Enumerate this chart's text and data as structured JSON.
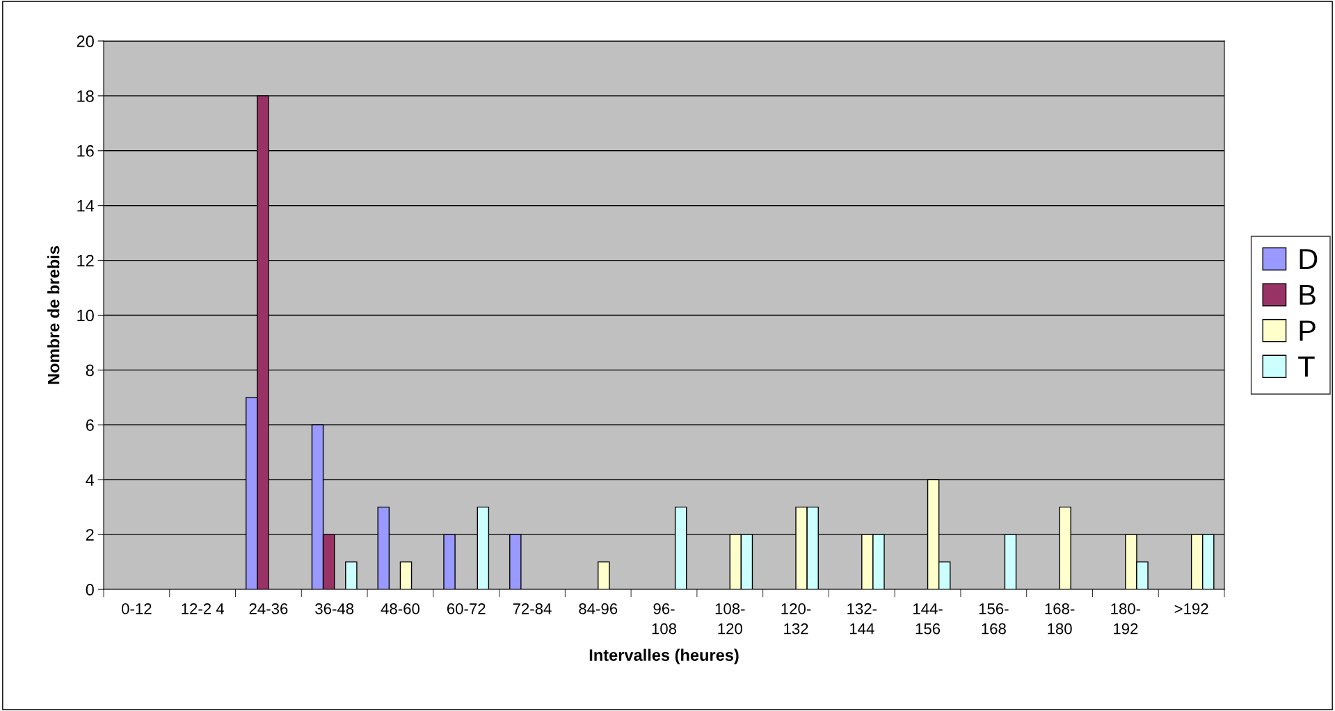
{
  "chart_data": {
    "type": "bar",
    "xlabel": "Intervalles (heures)",
    "ylabel": "Nombre de brebis",
    "categories": [
      "0-12",
      "12-2 4",
      "24-36",
      "36-48",
      "48-60",
      "60-72",
      "72-84",
      "84-96",
      "96-\n108",
      "108-\n120",
      "120-\n132",
      "132-\n144",
      "144-\n156",
      "156-\n168",
      "168-\n180",
      "180-\n192",
      ">192"
    ],
    "series": [
      {
        "name": "D",
        "color": "#9999ff",
        "values": [
          null,
          null,
          7,
          6,
          3,
          2,
          2,
          null,
          null,
          null,
          null,
          null,
          null,
          null,
          null,
          null,
          null
        ]
      },
      {
        "name": "B",
        "color": "#993366",
        "values": [
          null,
          null,
          18,
          2,
          null,
          null,
          null,
          null,
          null,
          null,
          null,
          null,
          null,
          null,
          null,
          null,
          null
        ]
      },
      {
        "name": "P",
        "color": "#ffffcc",
        "values": [
          null,
          null,
          null,
          null,
          1,
          null,
          null,
          1,
          null,
          2,
          3,
          2,
          4,
          null,
          3,
          2,
          2
        ]
      },
      {
        "name": "T",
        "color": "#ccffff",
        "values": [
          null,
          null,
          null,
          1,
          null,
          3,
          null,
          null,
          3,
          2,
          3,
          2,
          1,
          2,
          null,
          1,
          2
        ]
      }
    ],
    "ylim": [
      0,
      20
    ],
    "yticks": [
      0,
      2,
      4,
      6,
      8,
      10,
      12,
      14,
      16,
      18,
      20
    ],
    "grid": "y",
    "legend": "right"
  }
}
